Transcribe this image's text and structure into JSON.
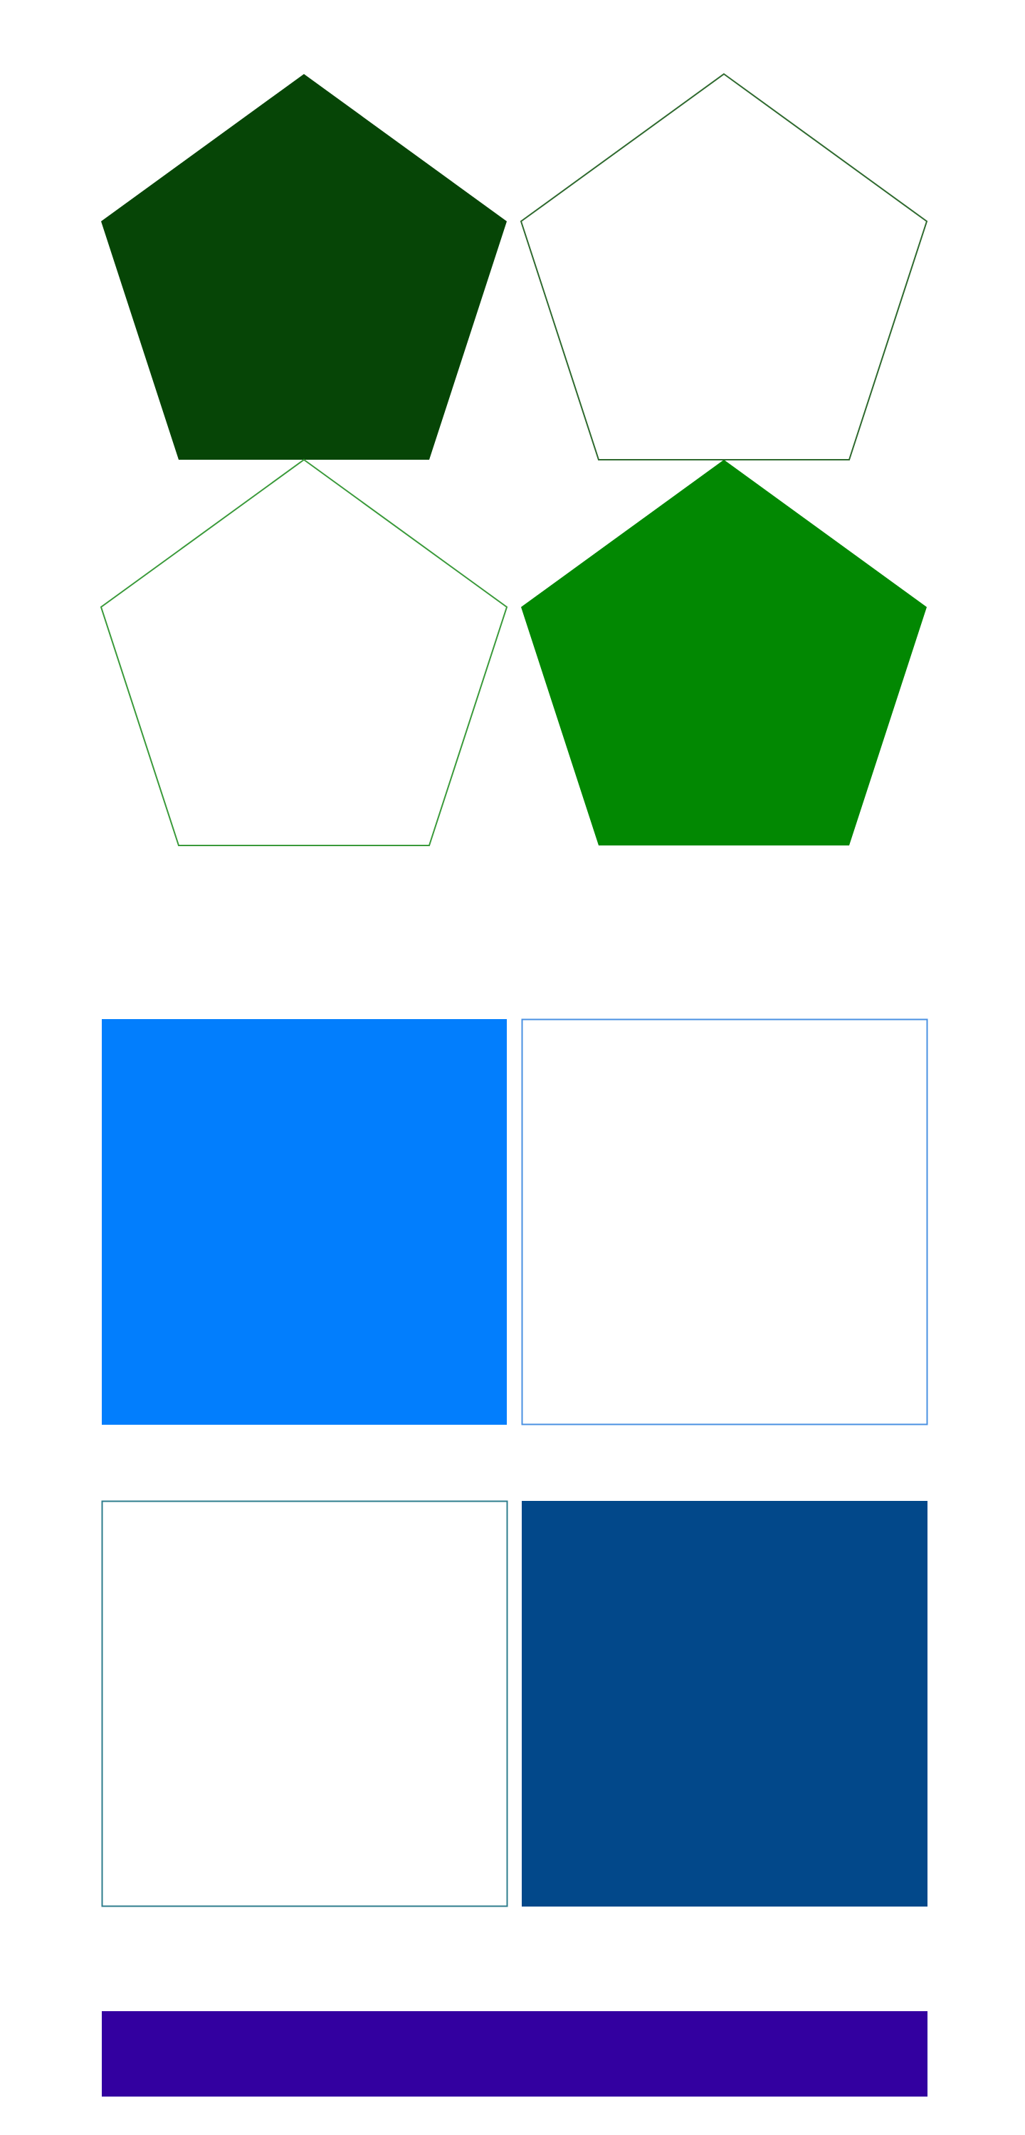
{
  "colors": {
    "pentagon_dark_green": "#064506",
    "pentagon_outline_dark": "#2f6a2f",
    "pentagon_outline_green": "#3a9a3a",
    "pentagon_green": "#028802",
    "square_blue": "#027efd",
    "square_outline_blue": "#4a90e2",
    "square_outline_teal": "#2e7d8c",
    "square_navy": "#02488a",
    "bar_purple": "#3300a0"
  },
  "shapes": {
    "pentagon_1": {
      "kind": "pentagon",
      "style": "filled",
      "color": "pentagon_dark_green"
    },
    "pentagon_2": {
      "kind": "pentagon",
      "style": "outline",
      "color": "pentagon_outline_dark"
    },
    "pentagon_3": {
      "kind": "pentagon",
      "style": "outline",
      "color": "pentagon_outline_green"
    },
    "pentagon_4": {
      "kind": "pentagon",
      "style": "filled",
      "color": "pentagon_green"
    },
    "square_1": {
      "kind": "square",
      "style": "filled",
      "color": "square_blue"
    },
    "square_2": {
      "kind": "square",
      "style": "outline",
      "color": "square_outline_blue"
    },
    "square_3": {
      "kind": "square",
      "style": "outline",
      "color": "square_outline_teal"
    },
    "square_4": {
      "kind": "square",
      "style": "filled",
      "color": "square_navy"
    },
    "bar": {
      "kind": "rectangle",
      "style": "filled",
      "color": "bar_purple"
    }
  }
}
